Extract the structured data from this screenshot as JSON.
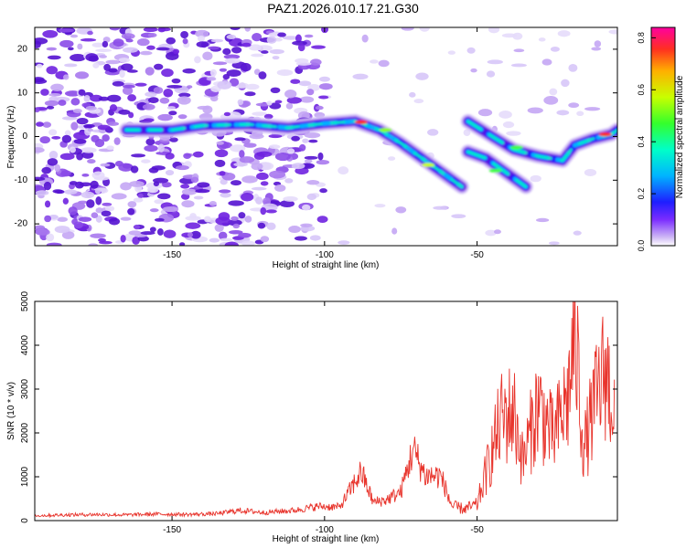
{
  "title": "PAZ1.2026.010.17.21.G30",
  "chart_data": [
    {
      "type": "heatmap",
      "name": "spectrogram",
      "xlabel": "Height of straight line (km)",
      "ylabel": "Frequency (Hz)",
      "xlim": [
        -195,
        -4
      ],
      "ylim": [
        -25,
        25
      ],
      "xticks": [
        -150,
        -100,
        -50
      ],
      "yticks": [
        -20,
        -10,
        0,
        10,
        20
      ],
      "colorbar": {
        "label": "Normalized spectral amplitude",
        "range": [
          0,
          0.84
        ],
        "ticks": [
          0.0,
          0.2,
          0.4,
          0.6,
          0.8
        ]
      },
      "ridges": [
        {
          "name": "main",
          "points": [
            [
              -165,
              1.5
            ],
            [
              -150,
              1.5
            ],
            [
              -140,
              2.5
            ],
            [
              -125,
              2.8
            ],
            [
              -112,
              2.0
            ],
            [
              -100,
              3.0
            ],
            [
              -90,
              3.5
            ],
            [
              -82,
              1.5
            ],
            [
              -75,
              -1.5
            ],
            [
              -68,
              -5.0
            ],
            [
              -62,
              -8.0
            ],
            [
              -55,
              -11.5
            ]
          ]
        },
        {
          "name": "upper-right",
          "points": [
            [
              -53,
              3.5
            ],
            [
              -45,
              0.0
            ],
            [
              -38,
              -3.0
            ],
            [
              -30,
              -4.5
            ],
            [
              -22,
              -5.5
            ],
            [
              -18,
              -2.0
            ],
            [
              -12,
              -0.5
            ],
            [
              -6,
              0.5
            ],
            [
              -4,
              1.5
            ]
          ]
        },
        {
          "name": "lower-right",
          "points": [
            [
              -53,
              -3.5
            ],
            [
              -47,
              -5.0
            ],
            [
              -40,
              -8.5
            ],
            [
              -34,
              -11.5
            ]
          ]
        }
      ]
    },
    {
      "type": "line",
      "name": "snr",
      "xlabel": "Height of straight line (km)",
      "ylabel": "SNR (10 * v/v)",
      "xlim": [
        -195,
        -4
      ],
      "ylim": [
        0,
        5000
      ],
      "xticks": [
        -150,
        -100,
        -50
      ],
      "yticks": [
        0,
        1000,
        2000,
        3000,
        4000,
        5000
      ],
      "series": [
        {
          "name": "SNR",
          "color": "#e8342c",
          "x": [
            -195,
            -185,
            -175,
            -165,
            -155,
            -145,
            -135,
            -128,
            -120,
            -110,
            -102,
            -95,
            -88,
            -84,
            -80,
            -75,
            -71,
            -67,
            -62,
            -58,
            -54,
            -50,
            -45,
            -42,
            -38,
            -35,
            -30,
            -25,
            -20,
            -18,
            -15,
            -12,
            -8,
            -5
          ],
          "y": [
            120,
            140,
            150,
            140,
            160,
            150,
            170,
            250,
            200,
            250,
            350,
            330,
            1200,
            450,
            500,
            700,
            1750,
            1100,
            1100,
            350,
            300,
            400,
            1800,
            2600,
            2800,
            1500,
            3000,
            2100,
            3200,
            5000,
            1800,
            2800,
            3900,
            2800
          ]
        }
      ]
    }
  ]
}
